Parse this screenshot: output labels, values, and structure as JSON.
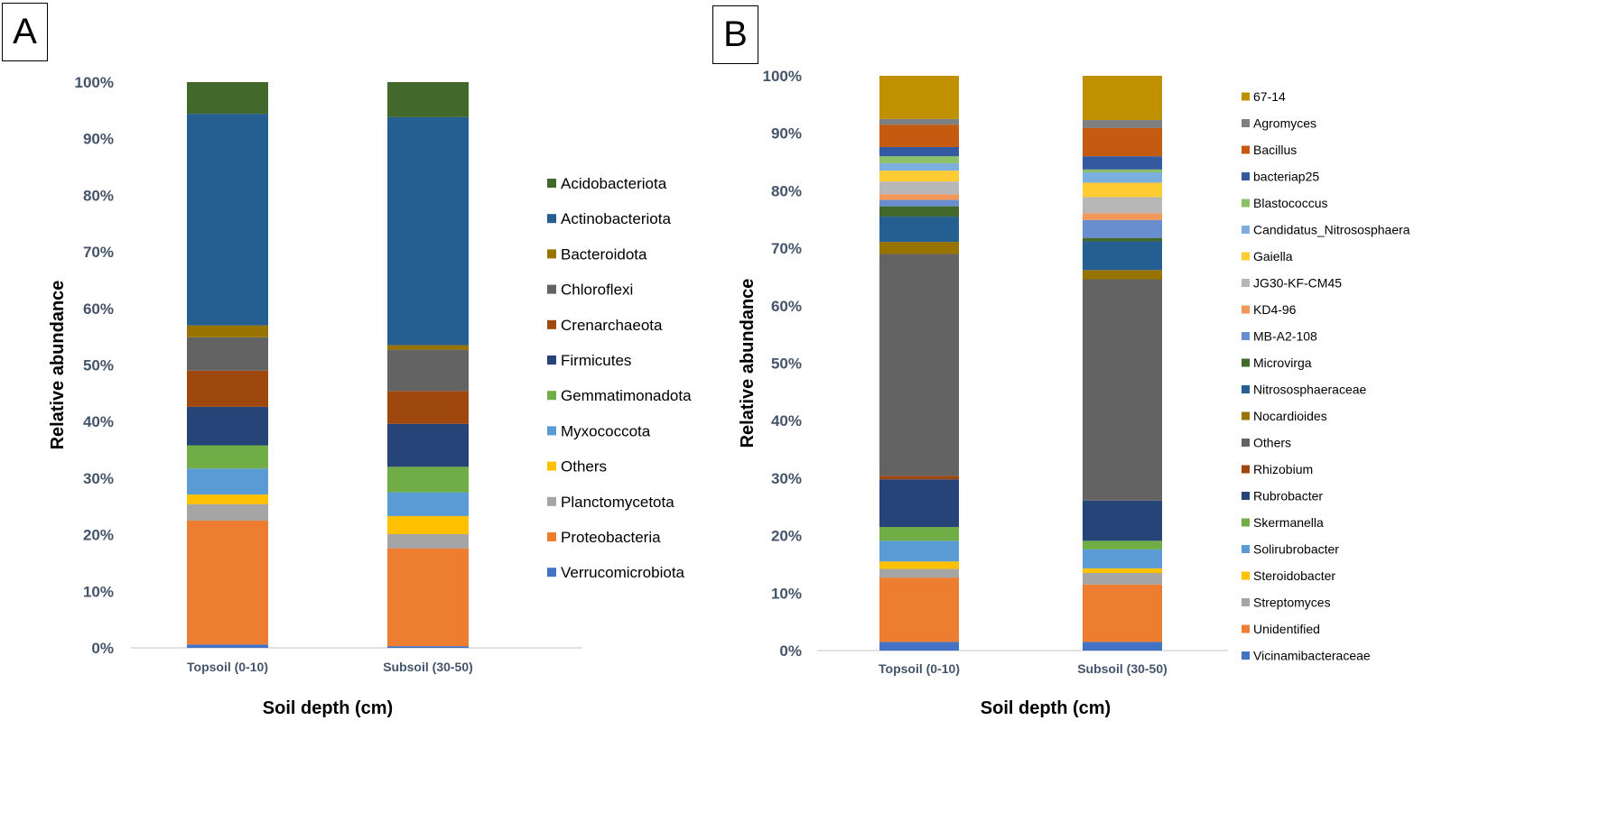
{
  "panels": {
    "a": "A",
    "b": "B"
  },
  "chart_data": [
    {
      "type": "bar",
      "stacked": true,
      "panel": "A",
      "categories": [
        "Topsoil (0-10)",
        "Subsoil (30-50)"
      ],
      "xlabel": "Soil depth (cm)",
      "ylabel": "Relative abundance",
      "ylim": [
        0,
        100
      ],
      "yticks": [
        "0%",
        "10%",
        "20%",
        "30%",
        "40%",
        "50%",
        "60%",
        "70%",
        "80%",
        "90%",
        "100%"
      ],
      "legend_position": "right",
      "series": [
        {
          "name": "Verrucomicrobiota",
          "color": "#4472C4",
          "values": [
            0.6,
            0.3
          ]
        },
        {
          "name": "Proteobacteria",
          "color": "#ED7D31",
          "values": [
            21.9,
            17.3
          ]
        },
        {
          "name": "Planctomycetota",
          "color": "#A5A5A5",
          "values": [
            2.9,
            2.5
          ]
        },
        {
          "name": "Others",
          "color": "#FFC000",
          "values": [
            1.7,
            3.2
          ]
        },
        {
          "name": "Myxococcota",
          "color": "#5B9BD5",
          "values": [
            4.6,
            4.2
          ]
        },
        {
          "name": "Gemmatimonadota",
          "color": "#70AD47",
          "values": [
            4.1,
            4.5
          ]
        },
        {
          "name": "Firmicutes",
          "color": "#264478",
          "values": [
            6.8,
            7.6
          ]
        },
        {
          "name": "Crenarchaeota",
          "color": "#9E480E",
          "values": [
            6.4,
            5.8
          ]
        },
        {
          "name": "Chloroflexi",
          "color": "#636363",
          "values": [
            5.9,
            7.3
          ]
        },
        {
          "name": "Bacteroidota",
          "color": "#997300",
          "values": [
            2.1,
            0.8
          ]
        },
        {
          "name": "Actinobacteriota",
          "color": "#255E91",
          "values": [
            37.4,
            40.3
          ]
        },
        {
          "name": "Acidobacteriota",
          "color": "#43682B",
          "values": [
            5.6,
            6.2
          ]
        }
      ]
    },
    {
      "type": "bar",
      "stacked": true,
      "panel": "B",
      "categories": [
        "Topsoil (0-10)",
        "Subsoil (30-50)"
      ],
      "xlabel": "Soil depth (cm)",
      "ylabel": "Relative abundance",
      "ylim": [
        0,
        100
      ],
      "yticks": [
        "0%",
        "10%",
        "20%",
        "30%",
        "40%",
        "50%",
        "60%",
        "70%",
        "80%",
        "90%",
        "100%"
      ],
      "legend_position": "right",
      "series": [
        {
          "name": "Vicinamibacteraceae",
          "color": "#4472C4",
          "values": [
            1.5,
            1.5
          ]
        },
        {
          "name": "Unidentified",
          "color": "#ED7D31",
          "values": [
            11.2,
            10.0
          ]
        },
        {
          "name": "Streptomyces",
          "color": "#A5A5A5",
          "values": [
            1.5,
            2.0
          ]
        },
        {
          "name": "Steroidobacter",
          "color": "#FFC000",
          "values": [
            1.3,
            0.8
          ]
        },
        {
          "name": "Solirubrobacter",
          "color": "#5B9BD5",
          "values": [
            3.6,
            3.3
          ]
        },
        {
          "name": "Skermanella",
          "color": "#70AD47",
          "values": [
            2.4,
            1.5
          ]
        },
        {
          "name": "Rubrobacter",
          "color": "#264478",
          "values": [
            8.3,
            7.0
          ]
        },
        {
          "name": "Rhizobium",
          "color": "#9E480E",
          "values": [
            0.6,
            0.0
          ]
        },
        {
          "name": "Others",
          "color": "#636363",
          "values": [
            38.6,
            38.5
          ]
        },
        {
          "name": "Nocardioides",
          "color": "#997300",
          "values": [
            2.1,
            1.6
          ]
        },
        {
          "name": "Nitrososphaeraceae",
          "color": "#255E91",
          "values": [
            4.4,
            5.0
          ]
        },
        {
          "name": "Microvirga",
          "color": "#43682B",
          "values": [
            1.8,
            0.6
          ]
        },
        {
          "name": "MB-A2-108",
          "color": "#698ED0",
          "values": [
            1.1,
            3.1
          ]
        },
        {
          "name": "KD4-96",
          "color": "#F1975A",
          "values": [
            1.0,
            1.2
          ]
        },
        {
          "name": "JG30-KF-CM45",
          "color": "#B7B7B7",
          "values": [
            2.2,
            2.8
          ]
        },
        {
          "name": "Gaiella",
          "color": "#FFCD33",
          "values": [
            1.9,
            2.5
          ]
        },
        {
          "name": "Candidatus_Nitrososphaera",
          "color": "#7CAFDD",
          "values": [
            1.3,
            1.8
          ]
        },
        {
          "name": "Blastococcus",
          "color": "#8CC168",
          "values": [
            1.2,
            0.5
          ]
        },
        {
          "name": "bacteriap25",
          "color": "#335AA1",
          "values": [
            1.6,
            2.3
          ]
        },
        {
          "name": "Bacillus",
          "color": "#C55A11",
          "values": [
            3.9,
            4.9
          ]
        },
        {
          "name": "Agromyces",
          "color": "#7F7F7F",
          "values": [
            1.0,
            1.4
          ]
        },
        {
          "name": "67-14",
          "color": "#BF9000",
          "values": [
            7.5,
            7.7
          ]
        }
      ]
    }
  ]
}
